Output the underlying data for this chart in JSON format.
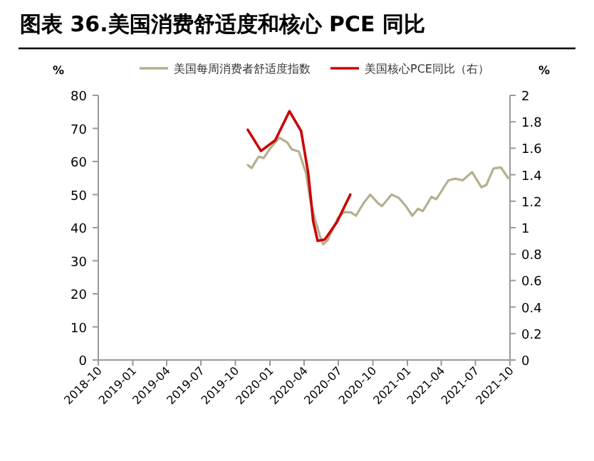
{
  "chart_data": {
    "type": "line",
    "title": "图表 36.美国消费舒适度和核心 PCE 同比",
    "ylabel": "%",
    "y2label": "%",
    "xlim": [
      "2018-10",
      "2021-10"
    ],
    "xticks": [
      "2018-10",
      "2019-01",
      "2019-04",
      "2019-07",
      "2019-10",
      "2020-01",
      "2020-04",
      "2020-07",
      "2020-10",
      "2021-01",
      "2021-04",
      "2021-07",
      "2021-10"
    ],
    "ylim": [
      0,
      80
    ],
    "yticks": [
      0,
      10,
      20,
      30,
      40,
      50,
      60,
      70,
      80
    ],
    "y2lim": [
      0,
      2
    ],
    "y2ticks": [
      0,
      0.2,
      0.4,
      0.6,
      0.8,
      1,
      1.2,
      1.4,
      1.6,
      1.8,
      2
    ],
    "grid": false,
    "legend": "top",
    "marker": "none",
    "line_style": "solid",
    "series": [
      {
        "name": "美国每周消费者舒适度指数",
        "color": "#b5af8e",
        "x": [
          "2019-11-03",
          "2019-11-13",
          "2019-12-02",
          "2019-12-15",
          "2019-12-31",
          "2020-01-26",
          "2020-02-16",
          "2020-02-28",
          "2020-03-18",
          "2020-04-06",
          "2020-04-18",
          "2020-05-01",
          "2020-05-14",
          "2020-05-22",
          "2020-06-02",
          "2020-06-15",
          "2020-06-30",
          "2020-07-16",
          "2020-08-04",
          "2020-08-17",
          "2020-09-05",
          "2020-09-24",
          "2020-10-13",
          "2020-10-25",
          "2020-11-20",
          "2020-12-09",
          "2020-12-28",
          "2021-01-14",
          "2021-01-29",
          "2021-02-11",
          "2021-03-06",
          "2021-03-19",
          "2021-04-20",
          "2021-05-09",
          "2021-05-28",
          "2021-06-22",
          "2021-07-17",
          "2021-07-30",
          "2021-08-18",
          "2021-09-07",
          "2021-09-26"
        ],
        "values": [
          58.9,
          58,
          61.5,
          61,
          63.7,
          67.2,
          65.8,
          63.7,
          63,
          56.5,
          47.9,
          42.2,
          37.1,
          35,
          36.1,
          39.3,
          42.9,
          44.7,
          44.6,
          43.6,
          47.2,
          50,
          47.6,
          46.5,
          50,
          49,
          46.5,
          43.6,
          45.7,
          45,
          49.3,
          48.6,
          54.3,
          54.8,
          54.3,
          56.8,
          52.2,
          52.9,
          57.9,
          58.2,
          55
        ]
      },
      {
        "name": "美国核心PCE同比（右）",
        "color": "#cc0000",
        "axis": "y2",
        "x": [
          "2019-11-03",
          "2019-12-08",
          "2020-01-15",
          "2020-02-22",
          "2020-03-24",
          "2020-04-12",
          "2020-04-25",
          "2020-05-07",
          "2020-05-26",
          "2020-06-27",
          "2020-08-02"
        ],
        "values": [
          1.74,
          1.58,
          1.66,
          1.88,
          1.73,
          1.41,
          1.05,
          0.9,
          0.91,
          1.04,
          1.25
        ]
      }
    ]
  }
}
